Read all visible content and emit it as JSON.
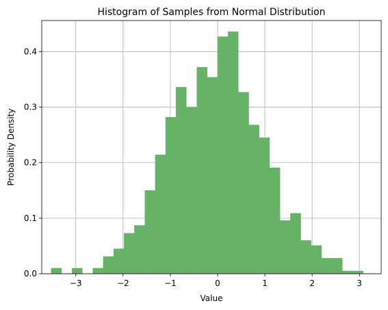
{
  "chart_data": {
    "type": "bar",
    "title": "Histogram of Samples from Normal Distribution",
    "xlabel": "Value",
    "ylabel": "Probability Density",
    "xlim": [
      -3.72,
      3.46
    ],
    "ylim": [
      0,
      0.456
    ],
    "xticks": [
      -3,
      -2,
      -1,
      0,
      1,
      2,
      3
    ],
    "xtick_labels": [
      "−3",
      "−2",
      "−1",
      "0",
      "1",
      "2",
      "3"
    ],
    "yticks": [
      0.0,
      0.1,
      0.2,
      0.3,
      0.4
    ],
    "ytick_labels": [
      "0.0",
      "0.1",
      "0.2",
      "0.3",
      "0.4"
    ],
    "grid": true,
    "bar_color": "#66b266",
    "bins": [
      {
        "x0": -3.52,
        "x1": -3.3,
        "value": 0.01
      },
      {
        "x0": -3.3,
        "x1": -3.08,
        "value": 0.0
      },
      {
        "x0": -3.08,
        "x1": -2.86,
        "value": 0.01
      },
      {
        "x0": -2.86,
        "x1": -2.64,
        "value": 0.0
      },
      {
        "x0": -2.64,
        "x1": -2.42,
        "value": 0.01
      },
      {
        "x0": -2.42,
        "x1": -2.2,
        "value": 0.031
      },
      {
        "x0": -2.2,
        "x1": -1.98,
        "value": 0.045
      },
      {
        "x0": -1.98,
        "x1": -1.76,
        "value": 0.073
      },
      {
        "x0": -1.76,
        "x1": -1.54,
        "value": 0.087
      },
      {
        "x0": -1.54,
        "x1": -1.32,
        "value": 0.15
      },
      {
        "x0": -1.32,
        "x1": -1.1,
        "value": 0.214
      },
      {
        "x0": -1.1,
        "x1": -0.88,
        "value": 0.282
      },
      {
        "x0": -0.88,
        "x1": -0.66,
        "value": 0.336
      },
      {
        "x0": -0.66,
        "x1": -0.44,
        "value": 0.3
      },
      {
        "x0": -0.44,
        "x1": -0.22,
        "value": 0.372
      },
      {
        "x0": -0.22,
        "x1": 0.0,
        "value": 0.354
      },
      {
        "x0": 0.0,
        "x1": 0.22,
        "value": 0.427
      },
      {
        "x0": 0.22,
        "x1": 0.44,
        "value": 0.436
      },
      {
        "x0": 0.44,
        "x1": 0.66,
        "value": 0.327
      },
      {
        "x0": 0.66,
        "x1": 0.88,
        "value": 0.268
      },
      {
        "x0": 0.88,
        "x1": 1.1,
        "value": 0.245
      },
      {
        "x0": 1.1,
        "x1": 1.32,
        "value": 0.191
      },
      {
        "x0": 1.32,
        "x1": 1.54,
        "value": 0.096
      },
      {
        "x0": 1.54,
        "x1": 1.76,
        "value": 0.109
      },
      {
        "x0": 1.76,
        "x1": 1.98,
        "value": 0.06
      },
      {
        "x0": 1.98,
        "x1": 2.2,
        "value": 0.051
      },
      {
        "x0": 2.2,
        "x1": 2.42,
        "value": 0.028
      },
      {
        "x0": 2.42,
        "x1": 2.64,
        "value": 0.028
      },
      {
        "x0": 2.64,
        "x1": 2.86,
        "value": 0.005
      },
      {
        "x0": 2.86,
        "x1": 3.08,
        "value": 0.005
      }
    ]
  }
}
